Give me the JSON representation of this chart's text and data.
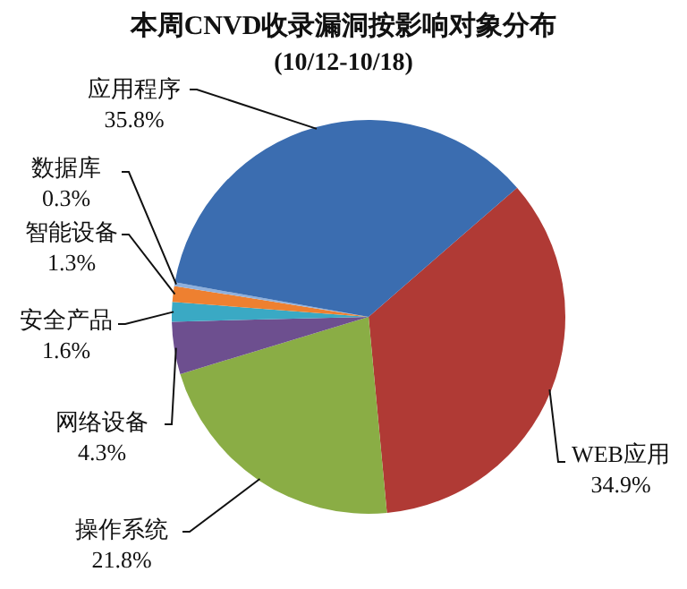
{
  "chart_data": {
    "type": "pie",
    "title": "本周CNVD收录漏洞按影响对象分布",
    "subtitle": "(10/12-10/18)",
    "categories": [
      "WEB应用",
      "操作系统",
      "网络设备",
      "安全产品",
      "智能设备",
      "数据库",
      "应用程序"
    ],
    "values": [
      34.9,
      21.8,
      4.3,
      1.6,
      1.3,
      0.3,
      35.8
    ],
    "value_labels": [
      "34.9%",
      "21.8%",
      "4.3%",
      "1.6%",
      "1.3%",
      "0.3%",
      "35.8%"
    ],
    "colors": [
      "#b03a35",
      "#8aad45",
      "#6d4f8f",
      "#3aa9c4",
      "#ee8030",
      "#8fb0dc",
      "#3b6db0"
    ],
    "legend": false
  }
}
